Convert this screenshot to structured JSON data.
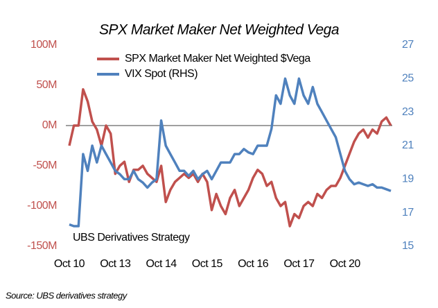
{
  "chart_data": {
    "type": "line",
    "title": "SPX Market Maker Net Weighted Vega",
    "annotation": "UBS Derivatives Strategy",
    "source": "Source: UBS derivatives strategy",
    "categories": [
      "Oct 10",
      null,
      null,
      null,
      null,
      null,
      null,
      null,
      null,
      null,
      "Oct 13",
      null,
      null,
      null,
      null,
      null,
      null,
      null,
      null,
      null,
      "Oct 14",
      null,
      null,
      null,
      null,
      null,
      null,
      null,
      null,
      null,
      "Oct 15",
      null,
      null,
      null,
      null,
      null,
      null,
      null,
      null,
      null,
      "Oct 16",
      null,
      null,
      null,
      null,
      null,
      null,
      null,
      null,
      null,
      "Oct 17",
      null,
      null,
      null,
      null,
      null,
      null,
      null,
      null,
      null,
      "Oct 20",
      null,
      null,
      null,
      null,
      null,
      null,
      null,
      null,
      null,
      null
    ],
    "series": [
      {
        "name": "SPX Market Maker Net Weighted $Vega",
        "color": "#c0504d",
        "axis": "y",
        "values": [
          -25,
          0,
          0,
          45,
          30,
          5,
          -5,
          -25,
          0,
          -10,
          -60,
          -50,
          -45,
          -70,
          -55,
          -55,
          -50,
          -60,
          -65,
          -70,
          -50,
          -95,
          -80,
          -70,
          -65,
          -60,
          -65,
          -60,
          -70,
          -60,
          -70,
          -105,
          -85,
          -100,
          -110,
          -90,
          -80,
          -100,
          -90,
          -80,
          -65,
          -55,
          -60,
          -75,
          -70,
          -90,
          -100,
          -95,
          -125,
          -110,
          -115,
          -100,
          -95,
          -100,
          -85,
          -90,
          -80,
          -75,
          -75,
          -65,
          -50,
          -35,
          -20,
          -10,
          -5,
          -15,
          -5,
          -10,
          5,
          10,
          0
        ]
      },
      {
        "name": "VIX Spot (RHS)",
        "color": "#4f81bd",
        "axis": "y2",
        "values": [
          16.3,
          16.2,
          16.2,
          20.5,
          19.5,
          21,
          20,
          21,
          20.5,
          20,
          19.5,
          19.3,
          19,
          19,
          19.5,
          19,
          18.8,
          18.5,
          18.8,
          19,
          22.5,
          21,
          20.5,
          20,
          19.5,
          19.5,
          19.2,
          19.5,
          19,
          19.3,
          19.5,
          19,
          19.5,
          20,
          20,
          20,
          20.5,
          20.5,
          20.8,
          20.6,
          20.5,
          21,
          21,
          21,
          22,
          24,
          23.5,
          25,
          24,
          23.5,
          25,
          24,
          23.5,
          24.5,
          23.5,
          23,
          22.5,
          22,
          21.5,
          20.5,
          19.5,
          19,
          18.7,
          18.8,
          18.7,
          18.6,
          18.7,
          18.5,
          18.5,
          18.4,
          18.3
        ]
      }
    ],
    "ylim": [
      -150,
      100
    ],
    "yticks": [
      {
        "value": 100,
        "label": "100M"
      },
      {
        "value": 50,
        "label": "50M"
      },
      {
        "value": 0,
        "label": "0M"
      },
      {
        "value": -50,
        "label": "-50M"
      },
      {
        "value": -100,
        "label": "-100M"
      },
      {
        "value": -150,
        "label": "-150M"
      }
    ],
    "y2lim": [
      15,
      27
    ],
    "y2ticks": [
      27,
      25,
      23,
      21,
      19,
      17,
      15
    ]
  }
}
